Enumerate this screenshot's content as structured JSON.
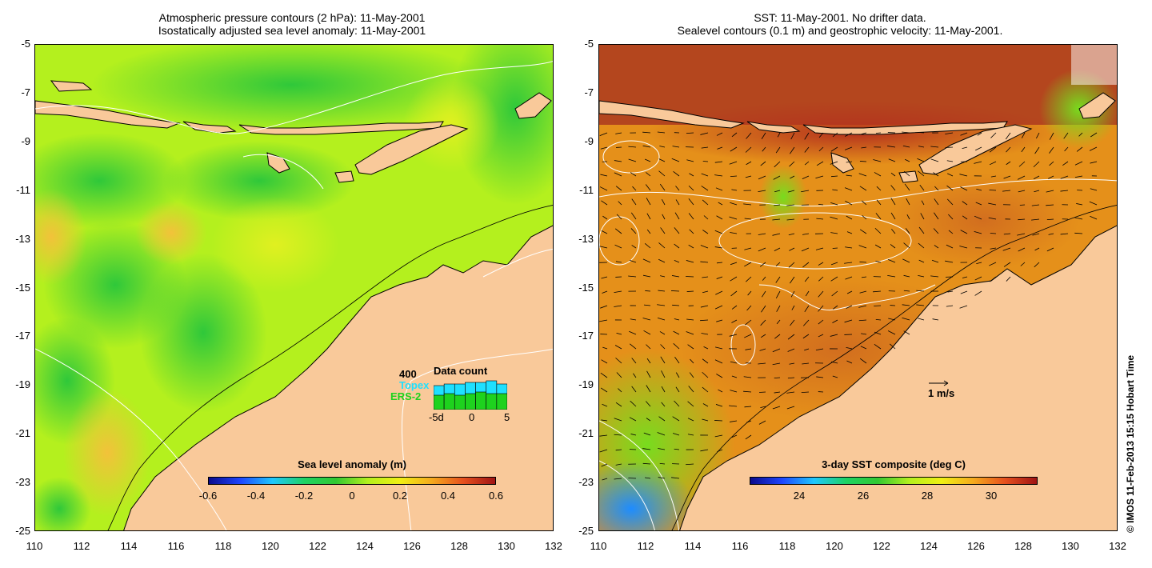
{
  "left_panel": {
    "title_line1": "Atmospheric pressure contours (2 hPa): 11-May-2001",
    "title_line2": "Isostatically adjusted sea level anomaly: 11-May-2001",
    "colorbar_title": "Sea level anomaly (m)",
    "colorbar_ticks": [
      "-0.6",
      "-0.4",
      "-0.2",
      "0",
      "0.2",
      "0.4",
      "0.6"
    ],
    "data_count": {
      "title": "Data count",
      "scale_label": "400",
      "topex_label": "Topex",
      "ers_label": "ERS-2",
      "x_ticks": [
        "-5d",
        "0",
        "5"
      ],
      "topex_fraction": [
        0.75,
        0.8,
        0.8,
        0.85,
        0.85,
        0.9,
        0.8
      ],
      "ers_fraction": [
        0.45,
        0.5,
        0.45,
        0.5,
        0.55,
        0.5,
        0.5
      ]
    }
  },
  "right_panel": {
    "title_line1": "SST: 11-May-2001. No drifter data.",
    "title_line2": "Sealevel contours (0.1 m) and geostrophic velocity: 11-May-2001.",
    "colorbar_title": "3-day SST composite (deg C)",
    "colorbar_ticks": [
      "24",
      "26",
      "28",
      "30"
    ],
    "velocity_scale_label": "1 m/s"
  },
  "axes": {
    "y_ticks": [
      "-5",
      "-7",
      "-9",
      "-11",
      "-13",
      "-15",
      "-17",
      "-19",
      "-21",
      "-23",
      "-25"
    ],
    "x_ticks": [
      "110",
      "112",
      "114",
      "116",
      "118",
      "120",
      "122",
      "124",
      "126",
      "128",
      "130",
      "132"
    ]
  },
  "credit": "© IMOS 11-Feb-2013 15:15 Hobart Time",
  "colors": {
    "land": "#f9c99a",
    "sla_base": "#b4f01e",
    "sst_base": "#e5901a"
  }
}
